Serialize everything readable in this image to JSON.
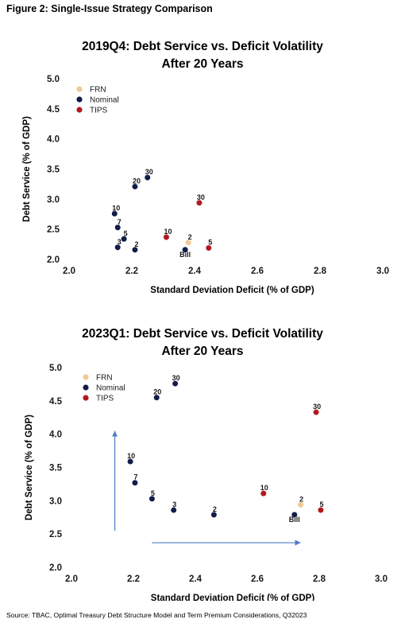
{
  "figure_title": "Figure 2: Single-Issue Strategy Comparison",
  "source": "Source: TBAC, Optimal Treasury Debt Structure Model and Term Premium Considerations, Q32023",
  "colors": {
    "FRN": "#f2c898",
    "Nominal": "#121c4a",
    "TIPS": "#b01a1e",
    "arrow": "#4f7ec1"
  },
  "chart_data": [
    {
      "type": "scatter",
      "title_line1": "2019Q4: Debt Service vs. Deficit Volatility",
      "title_line2": "After 20 Years",
      "xlabel": "Standard Deviation Deficit (% of GDP)",
      "ylabel": "Debt Service (% of GDP)",
      "xlim": [
        2.0,
        3.0
      ],
      "ylim": [
        2.0,
        5.0
      ],
      "xticks": [
        "2.0",
        "2.2",
        "2.4",
        "2.6",
        "2.8",
        "3.0"
      ],
      "yticks": [
        "2.0",
        "2.5",
        "3.0",
        "3.5",
        "4.0",
        "4.5",
        "5.0"
      ],
      "grid": false,
      "legend_position": "top-left",
      "legend": [
        "FRN",
        "Nominal",
        "TIPS"
      ],
      "series": [
        {
          "name": "FRN",
          "points": [
            {
              "x": 2.38,
              "y": 2.28,
              "label": "2"
            }
          ]
        },
        {
          "name": "Nominal",
          "points": [
            {
              "x": 2.155,
              "y": 2.2,
              "label": "3"
            },
            {
              "x": 2.21,
              "y": 2.16,
              "label": "2"
            },
            {
              "x": 2.175,
              "y": 2.34,
              "label": "5"
            },
            {
              "x": 2.155,
              "y": 2.53,
              "label": "7"
            },
            {
              "x": 2.145,
              "y": 2.76,
              "label": "10"
            },
            {
              "x": 2.21,
              "y": 3.21,
              "label": "20"
            },
            {
              "x": 2.25,
              "y": 3.36,
              "label": "30"
            },
            {
              "x": 2.37,
              "y": 2.16,
              "label": "Bill"
            }
          ]
        },
        {
          "name": "TIPS",
          "points": [
            {
              "x": 2.31,
              "y": 2.37,
              "label": "10"
            },
            {
              "x": 2.415,
              "y": 2.94,
              "label": "30"
            },
            {
              "x": 2.445,
              "y": 2.19,
              "label": "5"
            }
          ]
        }
      ]
    },
    {
      "type": "scatter",
      "title_line1": "2023Q1: Debt Service vs. Deficit Volatility",
      "title_line2": "After 20 Years",
      "xlabel": "Standard Deviation Deficit (% of GDP)",
      "ylabel": "Debt Service (% of GDP)",
      "xlim": [
        2.0,
        3.0
      ],
      "ylim": [
        2.0,
        5.0
      ],
      "xticks": [
        "2.0",
        "2.2",
        "2.4",
        "2.6",
        "2.8",
        "3.0"
      ],
      "yticks": [
        "2.0",
        "2.5",
        "3.0",
        "3.5",
        "4.0",
        "4.5",
        "5.0"
      ],
      "grid": false,
      "legend_position": "top-left",
      "legend": [
        "FRN",
        "Nominal",
        "TIPS"
      ],
      "arrows": [
        {
          "from": [
            2.14,
            2.55
          ],
          "to": [
            2.14,
            4.05
          ]
        },
        {
          "from": [
            2.26,
            2.37
          ],
          "to": [
            2.74,
            2.37
          ]
        }
      ],
      "series": [
        {
          "name": "FRN",
          "points": [
            {
              "x": 2.74,
              "y": 2.94,
              "label": "2"
            }
          ]
        },
        {
          "name": "Nominal",
          "points": [
            {
              "x": 2.19,
              "y": 3.59,
              "label": "10"
            },
            {
              "x": 2.205,
              "y": 3.27,
              "label": "7"
            },
            {
              "x": 2.26,
              "y": 3.03,
              "label": "5"
            },
            {
              "x": 2.33,
              "y": 2.86,
              "label": "3"
            },
            {
              "x": 2.46,
              "y": 2.79,
              "label": "2"
            },
            {
              "x": 2.72,
              "y": 2.79,
              "label": "Bill"
            },
            {
              "x": 2.275,
              "y": 4.55,
              "label": "20"
            },
            {
              "x": 2.335,
              "y": 4.76,
              "label": "30"
            }
          ]
        },
        {
          "name": "TIPS",
          "points": [
            {
              "x": 2.62,
              "y": 3.11,
              "label": "10"
            },
            {
              "x": 2.79,
              "y": 4.33,
              "label": "30"
            },
            {
              "x": 2.805,
              "y": 2.86,
              "label": "5"
            }
          ]
        }
      ]
    }
  ]
}
